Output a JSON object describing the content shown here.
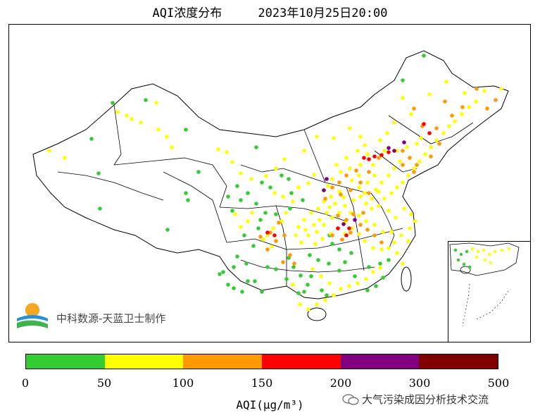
{
  "title": "AQI浓度分布     2023年10月25日20:00",
  "attribution": "中科数源-天蓝卫士制作",
  "watermark": "大气污染成因分析技术交流",
  "legend": {
    "label": "AQI(μg/m³)",
    "ticks": [
      "0",
      "50",
      "100",
      "150",
      "200",
      "300",
      "500"
    ],
    "colors": [
      "#33cc33",
      "#ffff00",
      "#ff9900",
      "#ff0000",
      "#800080",
      "#800000"
    ]
  },
  "station_categories": {
    "good": "#33cc33",
    "moderate": "#ffff00",
    "light": "#ff9900",
    "medium": "#ff0000",
    "heavy": "#800080"
  }
}
